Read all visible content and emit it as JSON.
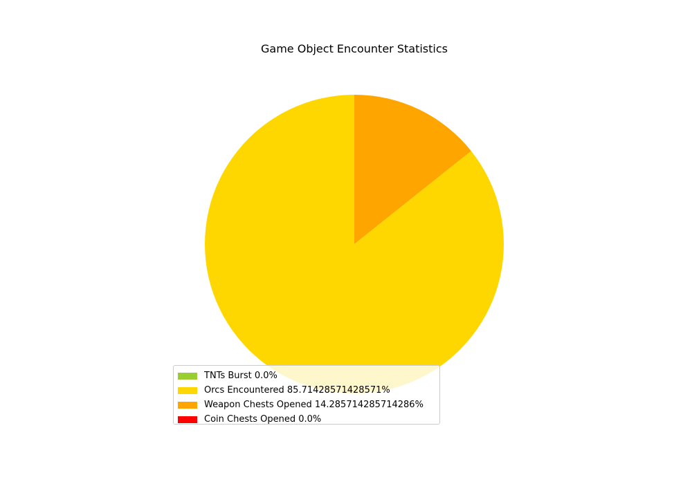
{
  "chart_data": {
    "type": "pie",
    "title": "Game Object Encounter Statistics",
    "start_angle_deg": 90,
    "direction": "counterclockwise",
    "slices": [
      {
        "label": "TNTs Burst 0.0%",
        "value": 0.0,
        "color": "#9acd32"
      },
      {
        "label": "Orcs Encountered 85.71428571428571%",
        "value": 85.71428571428571,
        "color": "#ffd700"
      },
      {
        "label": "Weapon Chests Opened 14.285714285714286%",
        "value": 14.285714285714286,
        "color": "#ffa500"
      },
      {
        "label": "Coin Chests Opened 0.0%",
        "value": 0.0,
        "color": "#ff0000"
      }
    ],
    "legend_position": "lower-left"
  }
}
